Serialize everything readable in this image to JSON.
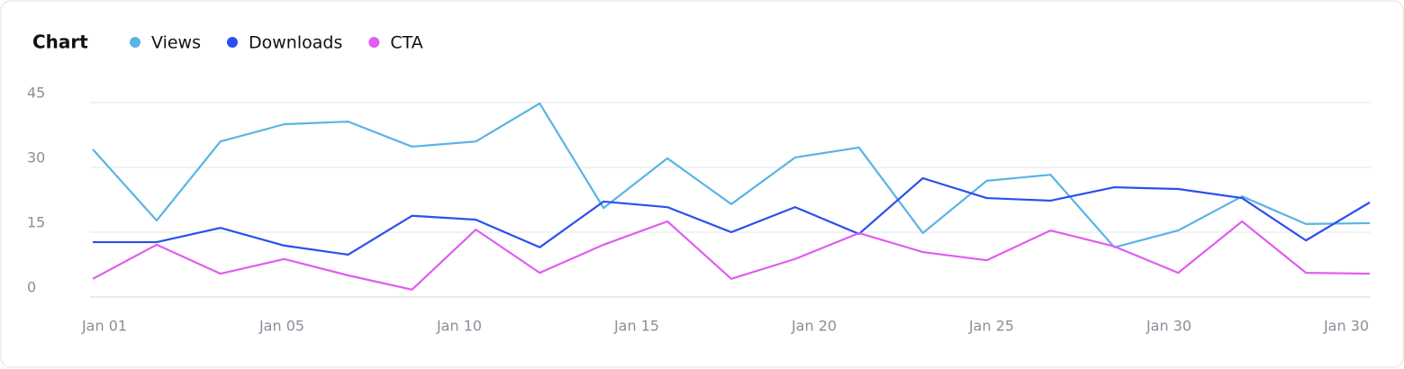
{
  "chart_data": {
    "type": "line",
    "title": "Chart",
    "xtick_labels": [
      "Jan 01",
      "Jan 05",
      "Jan 10",
      "Jan 15",
      "Jan 20",
      "Jan 25",
      "Jan 30",
      "Jan 30"
    ],
    "series": [
      {
        "name": "Views",
        "color": "#5ab4e5",
        "values": [
          34.2,
          17.7,
          36,
          40,
          40.6,
          34.8,
          36,
          44.8,
          20.6,
          32.1,
          21.5,
          32.3,
          34.6,
          14.8,
          26.9,
          28.3,
          11.5,
          15.4,
          23.3,
          16.9,
          17.1
        ]
      },
      {
        "name": "Downloads",
        "color": "#2a4ff0",
        "values": [
          12.7,
          12.7,
          16,
          11.9,
          9.8,
          18.8,
          17.9,
          11.5,
          22.1,
          20.8,
          15,
          20.8,
          14.6,
          27.5,
          22.9,
          22.3,
          25.4,
          25,
          22.9,
          13.1,
          21.9
        ]
      },
      {
        "name": "CTA",
        "color": "#e15cf0",
        "values": [
          4.2,
          12.1,
          5.4,
          8.8,
          5,
          1.7,
          15.6,
          5.6,
          12.1,
          17.5,
          4.2,
          8.8,
          14.8,
          10.4,
          8.5,
          15.4,
          11.7,
          5.6,
          17.5,
          5.6,
          5.4
        ]
      }
    ],
    "ylim": [
      0,
      45
    ],
    "yticks": [
      0,
      15,
      30,
      45
    ],
    "grid": true
  }
}
